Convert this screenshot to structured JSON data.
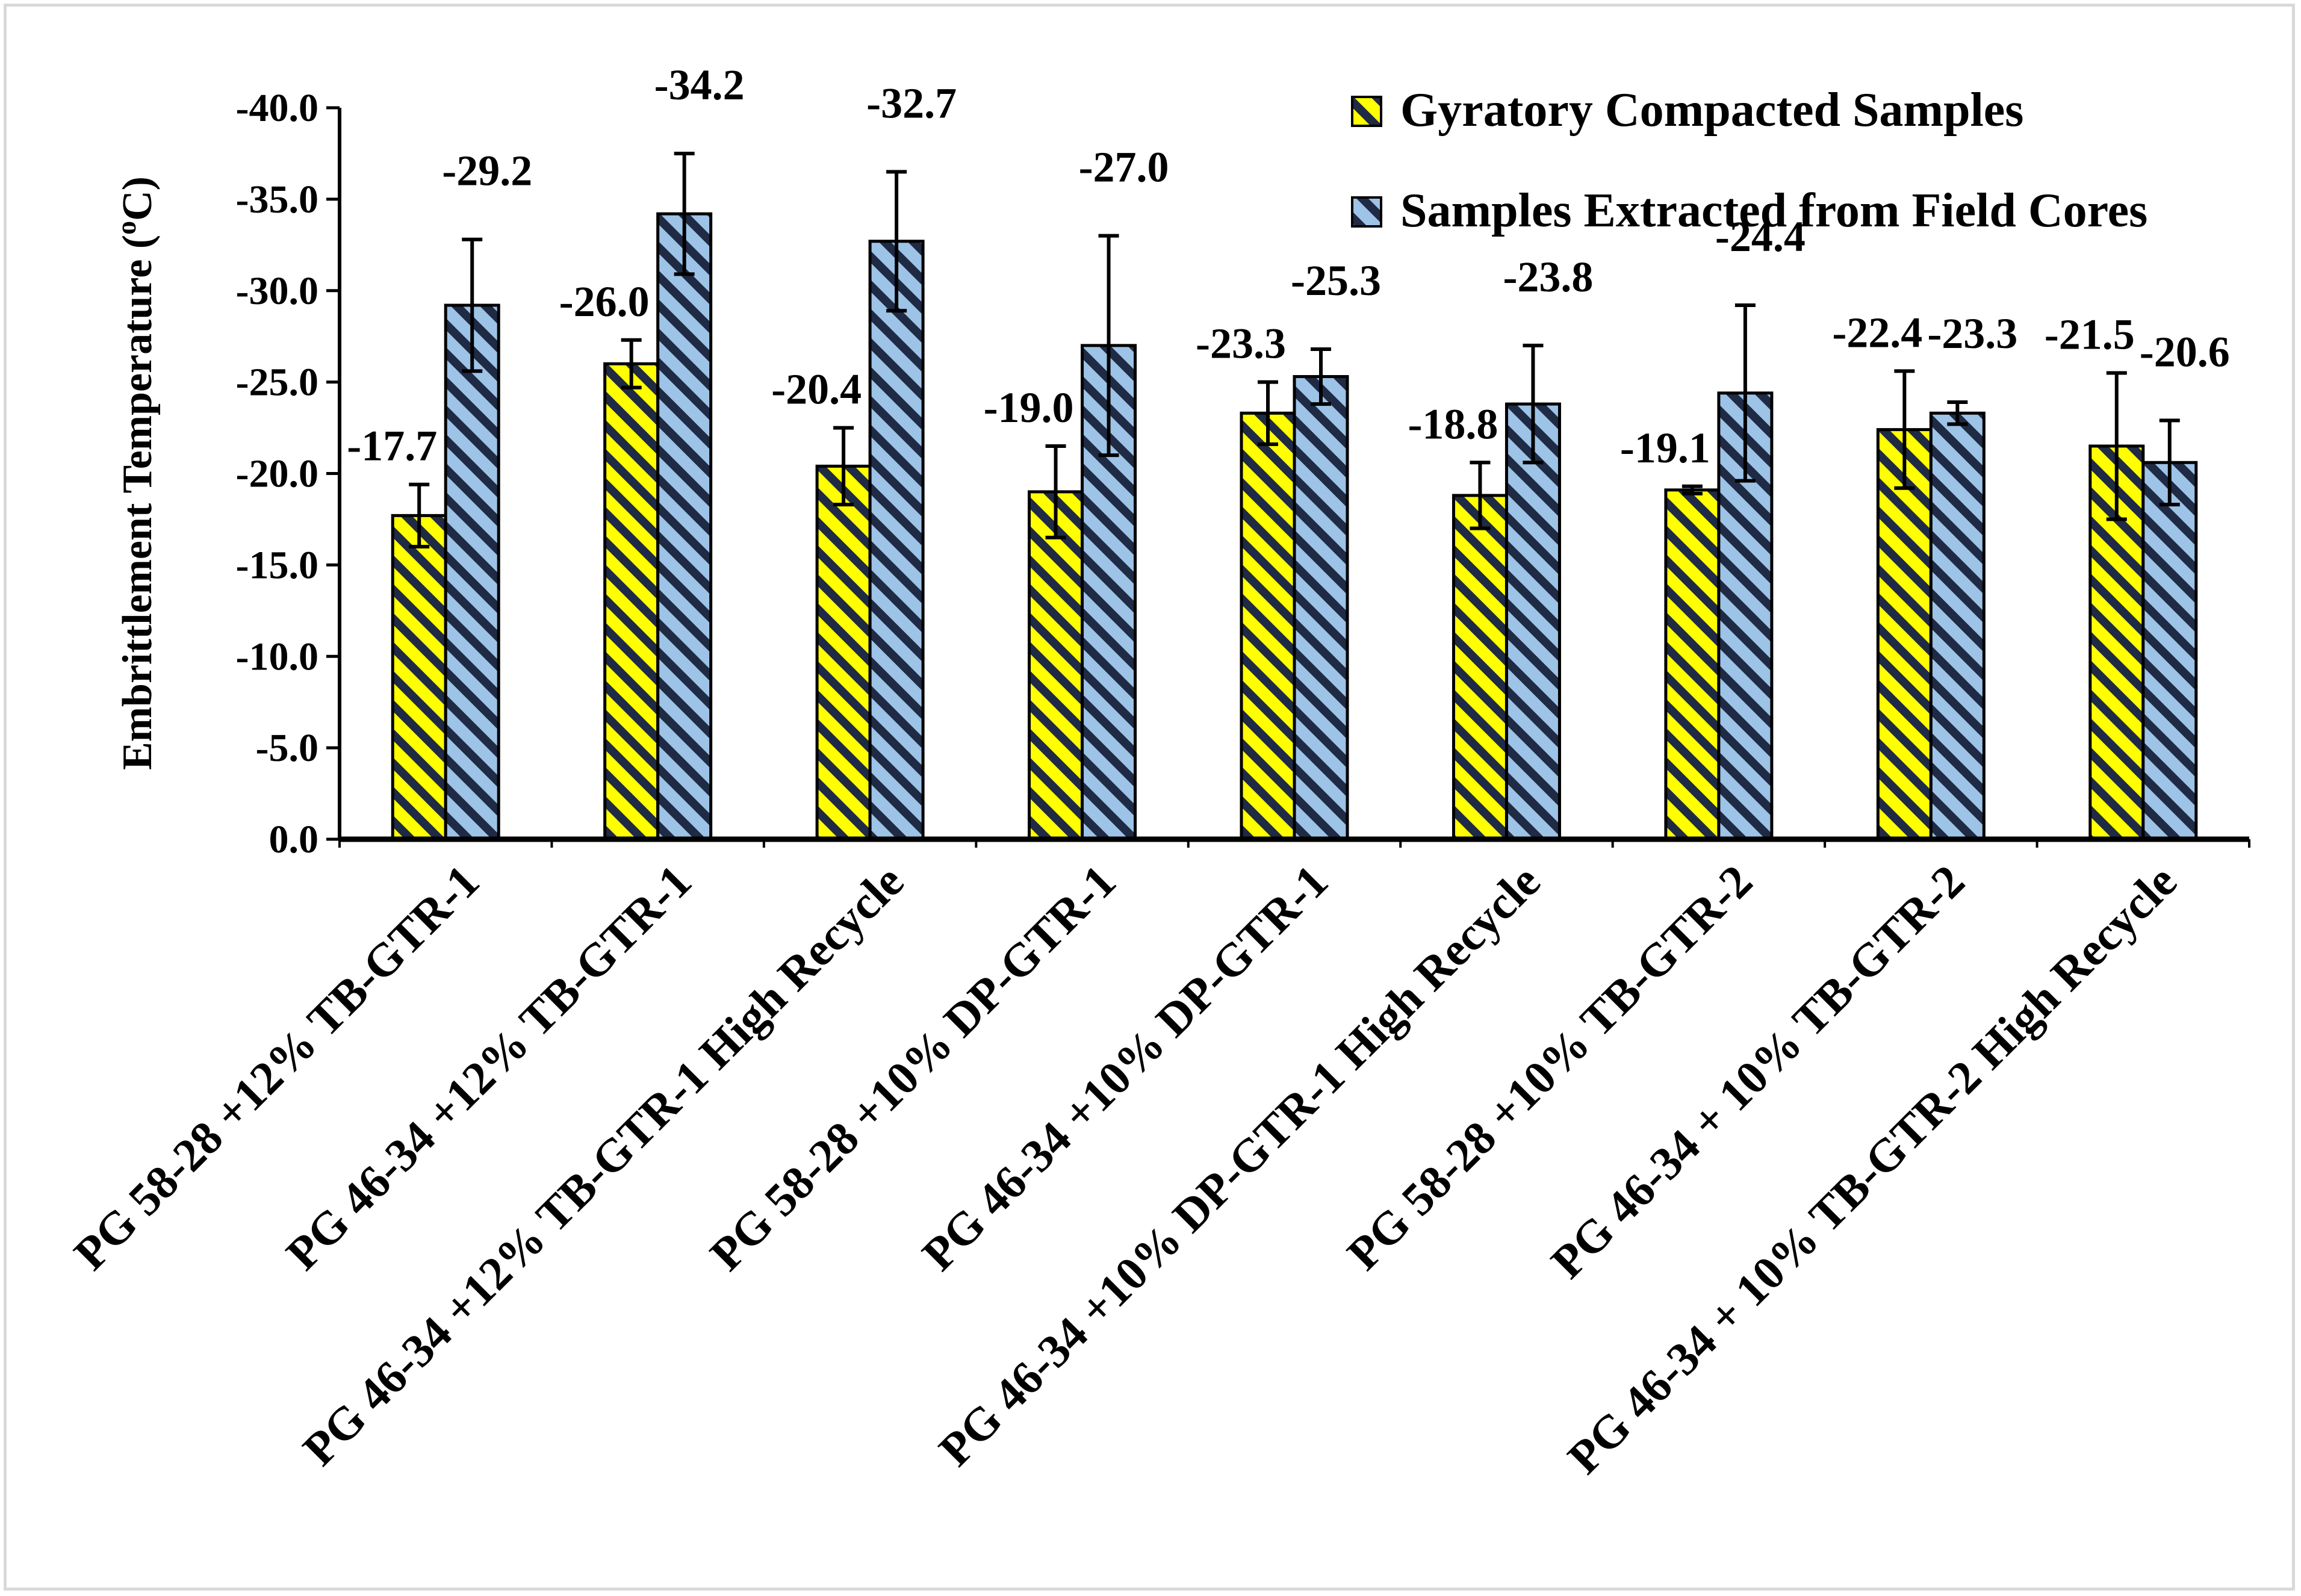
{
  "chart_data": {
    "type": "bar",
    "ylabel": "Embrittlement Temperature (oC)",
    "ylabel_parts": {
      "prefix": "Embrittlement Temperature (",
      "sup": "o",
      "suffix": "C)"
    },
    "ylim": [
      0,
      -40
    ],
    "y_step": -5,
    "y_ticks": [
      "0.0",
      "-5.0",
      "-10.0",
      "-15.0",
      "-20.0",
      "-25.0",
      "-30.0",
      "-35.0",
      "-40.0"
    ],
    "categories": [
      "PG 58-28 +12% TB-GTR-1",
      "PG 46-34 +12% TB-GTR-1",
      "PG 46-34 +12% TB-GTR-1 High Recycle",
      "PG 58-28 +10% DP-GTR-1",
      "PG 46-34 +10% DP-GTR-1",
      "PG 46-34 +10% DP-GTR-1 High Recycle",
      "PG 58-28 +10% TB-GTR-2",
      "PG 46-34 + 10% TB-GTR-2",
      "PG 46-34 + 10% TB-GTR-2 High Recycle"
    ],
    "series": [
      {
        "name": "Gyratory Compacted Samples",
        "color": "#ffff00",
        "stripe": "#1f2a44",
        "values": [
          -17.7,
          -26.0,
          -20.4,
          -19.0,
          -23.3,
          -18.8,
          -19.1,
          -22.4,
          -21.5
        ],
        "labels": [
          "-17.7",
          "-26.0",
          "-20.4",
          "-19.0",
          "-23.3",
          "-18.8",
          "-19.1",
          "-22.4",
          "-21.5"
        ],
        "errors": [
          1.7,
          1.3,
          2.1,
          2.5,
          1.7,
          1.8,
          0.2,
          3.2,
          4.0
        ]
      },
      {
        "name": "Samples Extracted from Field Cores",
        "color": "#9dc3e6",
        "stripe": "#1f2a44",
        "values": [
          -29.2,
          -34.2,
          -32.7,
          -27.0,
          -25.3,
          -23.8,
          -24.4,
          -23.3,
          -20.6
        ],
        "labels": [
          "-29.2",
          "-34.2",
          "-32.7",
          "-27.0",
          "-25.3",
          "-23.8",
          "-24.4",
          "-23.3",
          "-20.6"
        ],
        "errors": [
          3.6,
          3.3,
          3.8,
          6.0,
          1.5,
          3.2,
          4.8,
          0.6,
          2.3
        ]
      }
    ],
    "legend_position": "top-right"
  }
}
